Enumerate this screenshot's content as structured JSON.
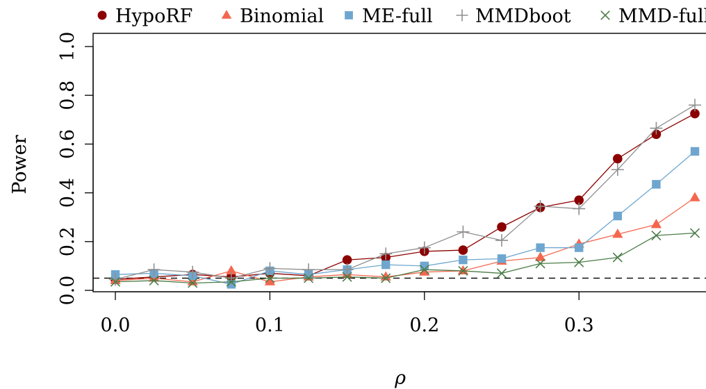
{
  "chart_data": {
    "type": "line",
    "title": "",
    "xlabel": "ρ",
    "ylabel": "Power",
    "xlim": [
      0.0,
      0.375
    ],
    "ylim": [
      0.0,
      1.0
    ],
    "x_ticks": [
      0.0,
      0.1,
      0.2,
      0.3
    ],
    "y_ticks": [
      0.0,
      0.2,
      0.4,
      0.6,
      0.8,
      1.0
    ],
    "x_tick_labels": [
      "0.0",
      "0.1",
      "0.2",
      "0.3"
    ],
    "y_tick_labels": [
      "0.0",
      "0.2",
      "0.4",
      "0.6",
      "0.8",
      "1.0"
    ],
    "legend_position": "top",
    "reference_line": {
      "y": 0.05,
      "style": "dashed",
      "color": "#000000"
    },
    "x": [
      0.0,
      0.025,
      0.05,
      0.075,
      0.1,
      0.125,
      0.15,
      0.175,
      0.2,
      0.225,
      0.25,
      0.275,
      0.3,
      0.325,
      0.35,
      0.375
    ],
    "series": [
      {
        "name": "HypoRF",
        "marker": "circle",
        "color": "#8b0000",
        "values": [
          0.045,
          0.055,
          0.065,
          0.055,
          0.07,
          0.06,
          0.125,
          0.135,
          0.16,
          0.165,
          0.26,
          0.34,
          0.37,
          0.54,
          0.64,
          0.725
        ]
      },
      {
        "name": "Binomial",
        "marker": "triangle",
        "color": "#f4674f",
        "values": [
          0.04,
          0.05,
          0.035,
          0.08,
          0.035,
          0.055,
          0.065,
          0.055,
          0.075,
          0.08,
          0.12,
          0.135,
          0.19,
          0.23,
          0.27,
          0.38
        ]
      },
      {
        "name": "ME-full",
        "marker": "square",
        "color": "#6ea6cf",
        "values": [
          0.065,
          0.07,
          0.06,
          0.025,
          0.08,
          0.065,
          0.085,
          0.105,
          0.1,
          0.125,
          0.13,
          0.175,
          0.175,
          0.305,
          0.435,
          0.57
        ]
      },
      {
        "name": "MMDboot",
        "marker": "plus",
        "color": "#8f8f8f",
        "values": [
          0.045,
          0.085,
          0.075,
          0.05,
          0.09,
          0.085,
          0.085,
          0.15,
          0.175,
          0.24,
          0.205,
          0.345,
          0.335,
          0.495,
          0.665,
          0.76
        ]
      },
      {
        "name": "MMD-full",
        "marker": "x",
        "color": "#4a7c47",
        "values": [
          0.035,
          0.04,
          0.03,
          0.035,
          0.05,
          0.05,
          0.055,
          0.05,
          0.085,
          0.08,
          0.07,
          0.11,
          0.115,
          0.135,
          0.225,
          0.235
        ]
      }
    ]
  }
}
